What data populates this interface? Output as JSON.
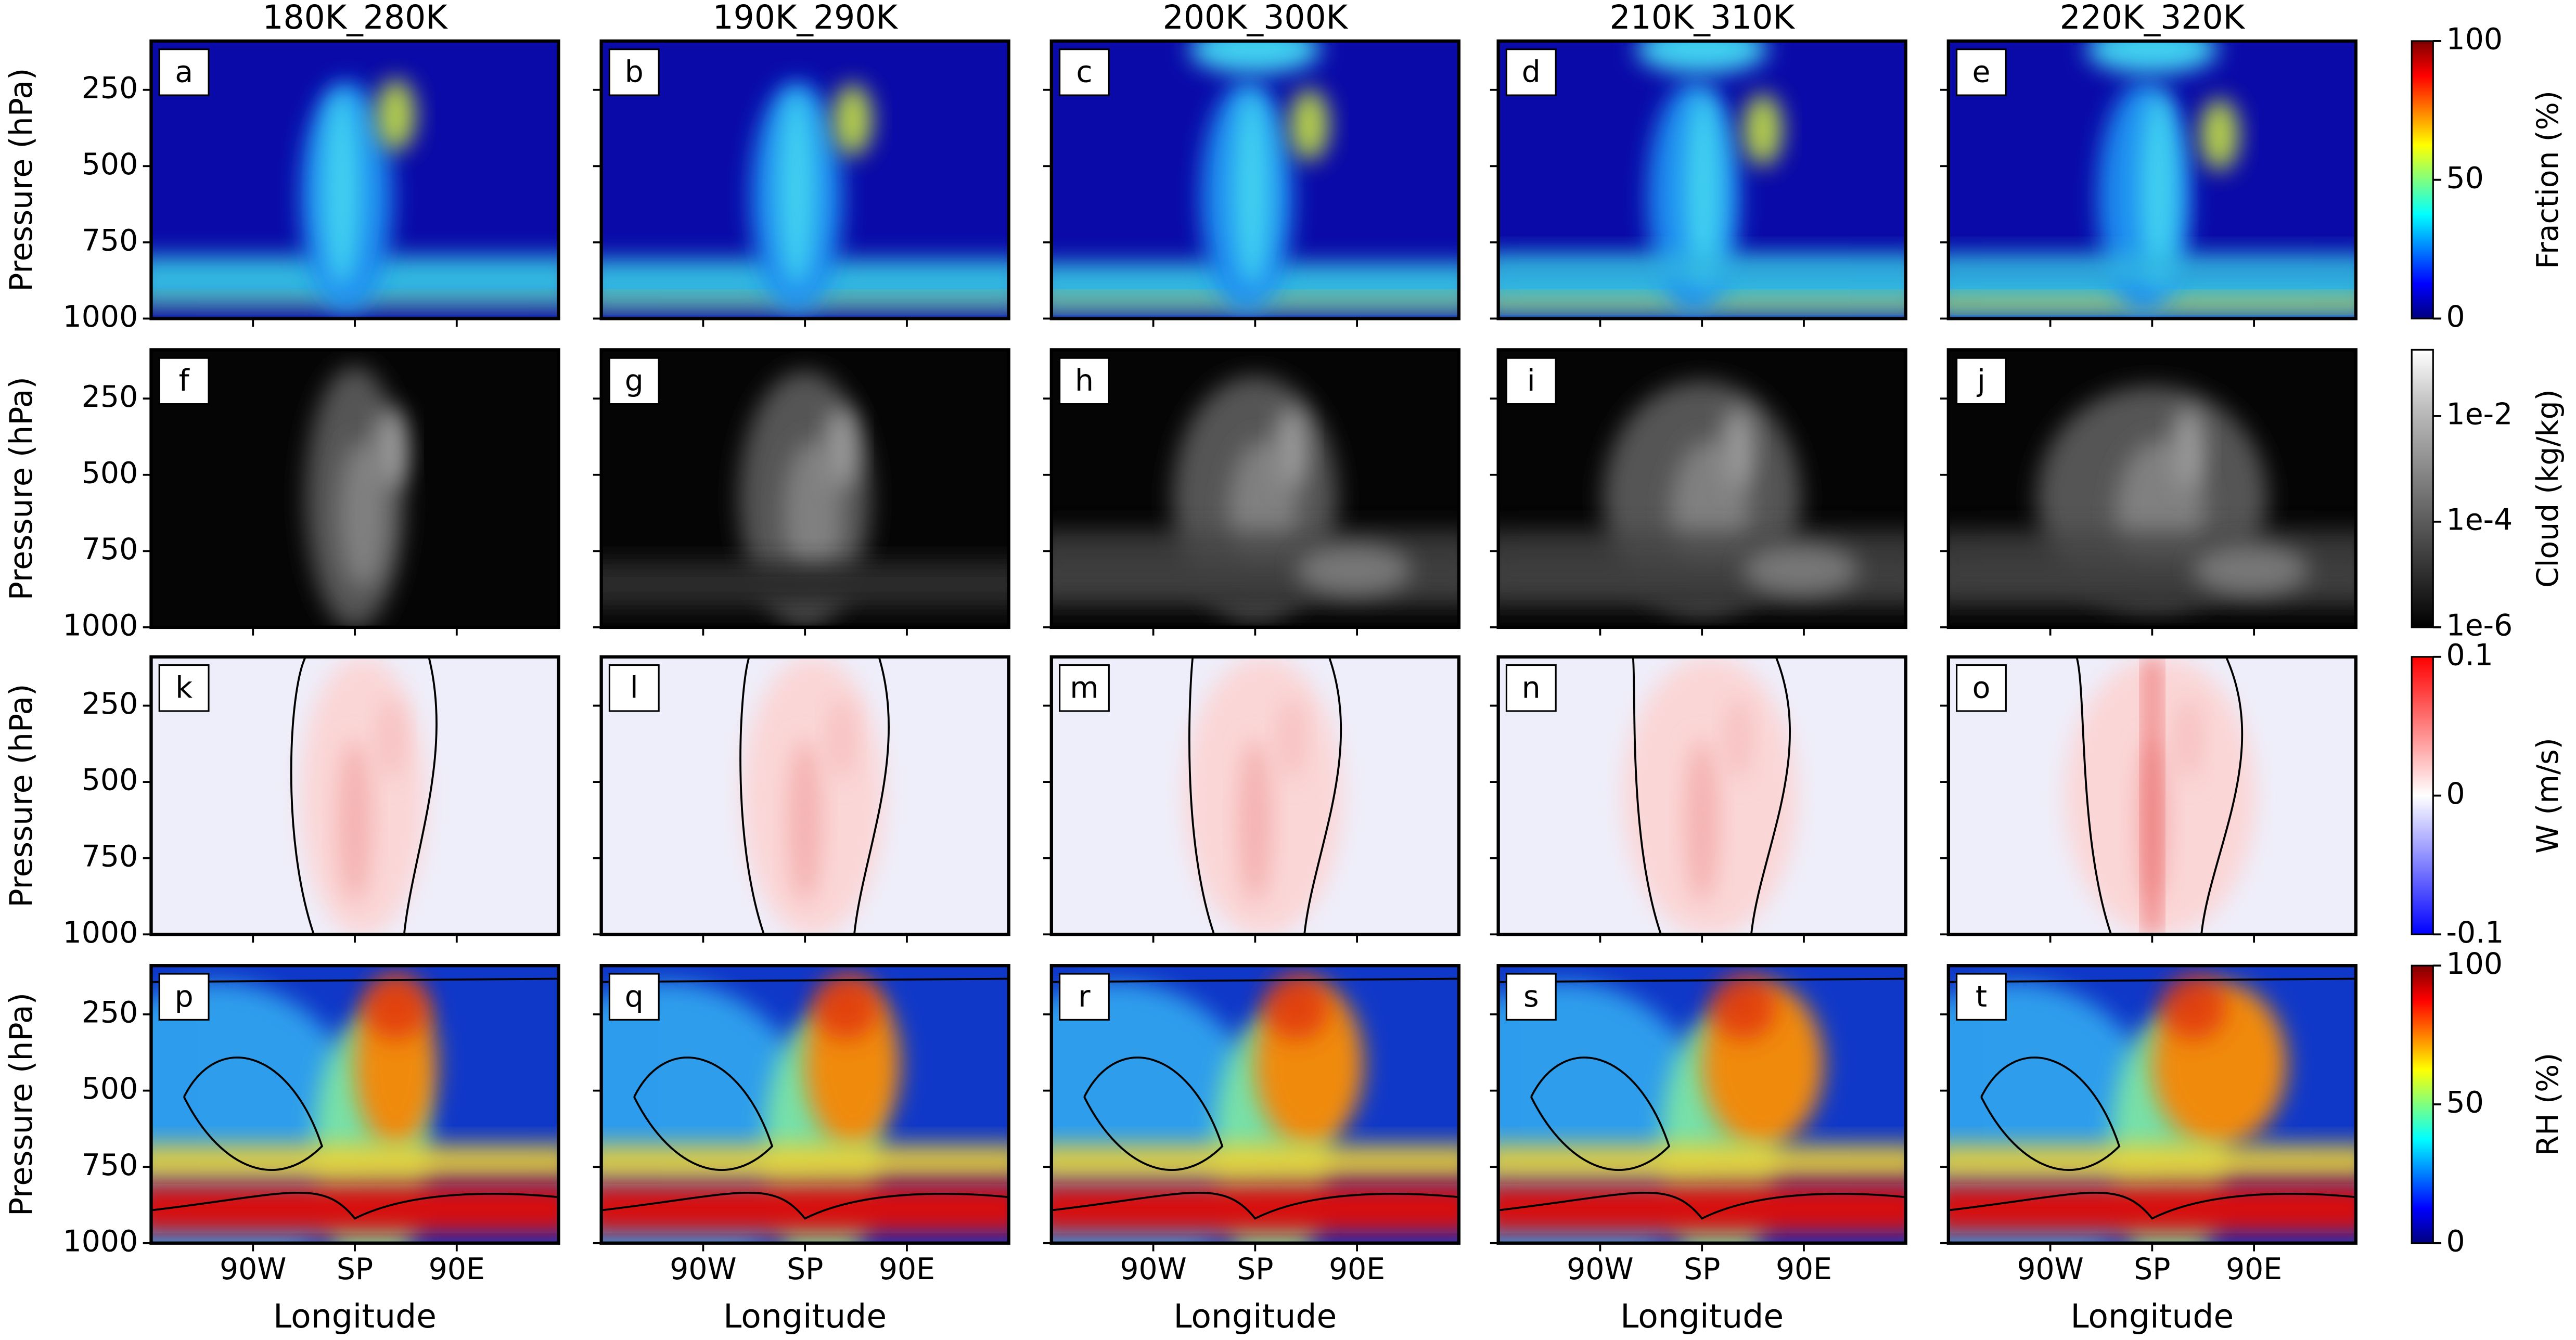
{
  "chart_data": [
    {
      "type": "contour",
      "titles": [
        "180K_280K",
        "190K_290K",
        "200K_300K",
        "210K_310K",
        "220K_320K"
      ],
      "panels": [
        "a",
        "b",
        "c",
        "d",
        "e"
      ],
      "ylabel": "Pressure (hPa)",
      "ylim": [
        1000,
        90
      ],
      "yticks": [
        250,
        500,
        750,
        1000
      ],
      "colorbar": {
        "label": "Fraction (%)",
        "lim": [
          0,
          100
        ],
        "ticks": [
          0,
          50,
          100
        ],
        "colors": [
          "#00007f",
          "#0000ff",
          "#007fff",
          "#00ffff",
          "#7fff7f",
          "#ffff00",
          "#ff7f00",
          "#ff0000",
          "#7f0000"
        ]
      }
    },
    {
      "type": "contour",
      "panels": [
        "f",
        "g",
        "h",
        "i",
        "j"
      ],
      "ylabel": "Pressure (hPa)",
      "ylim": [
        1000,
        90
      ],
      "yticks": [
        250,
        500,
        750,
        1000
      ],
      "colorbar": {
        "label": "Cloud (kg/kg)",
        "log": true,
        "lim": [
          1e-06,
          0.18
        ],
        "ticks": [
          {
            "value": 1e-06,
            "label": "1e-6"
          },
          {
            "value": 0.0001,
            "label": "1e-4"
          },
          {
            "value": 0.01,
            "label": "1e-2"
          }
        ],
        "colors": [
          "#000000",
          "#303030",
          "#606060",
          "#909090",
          "#c0c0c0",
          "#ffffff"
        ]
      }
    },
    {
      "type": "contour",
      "panels": [
        "k",
        "l",
        "m",
        "n",
        "o"
      ],
      "ylabel": "Pressure (hPa)",
      "ylim": [
        1000,
        90
      ],
      "yticks": [
        250,
        500,
        750,
        1000
      ],
      "colorbar": {
        "label": "W (m/s)",
        "lim": [
          -0.1,
          0.1
        ],
        "ticks": [
          -0.1,
          0,
          0.1
        ],
        "colors": [
          "#0000ff",
          "#8080ff",
          "#ffffff",
          "#ff8080",
          "#ff0000"
        ]
      }
    },
    {
      "type": "contour",
      "panels": [
        "p",
        "q",
        "r",
        "s",
        "t"
      ],
      "ylabel": "Pressure (hPa)",
      "ylim": [
        1000,
        90
      ],
      "yticks": [
        250,
        500,
        750,
        1000
      ],
      "xlabel": "Longitude",
      "xlim": [
        -180,
        180
      ],
      "xticks": [
        {
          "value": -90,
          "label": "90W"
        },
        {
          "value": 0,
          "label": "SP"
        },
        {
          "value": 90,
          "label": "90E"
        }
      ],
      "colorbar": {
        "label": "RH (%)",
        "lim": [
          0,
          100
        ],
        "ticks": [
          0,
          50,
          100
        ],
        "colors": [
          "#00007f",
          "#0000ff",
          "#007fff",
          "#00ffff",
          "#7fff7f",
          "#ffff00",
          "#ff7f00",
          "#ff0000",
          "#7f0000"
        ]
      }
    }
  ]
}
